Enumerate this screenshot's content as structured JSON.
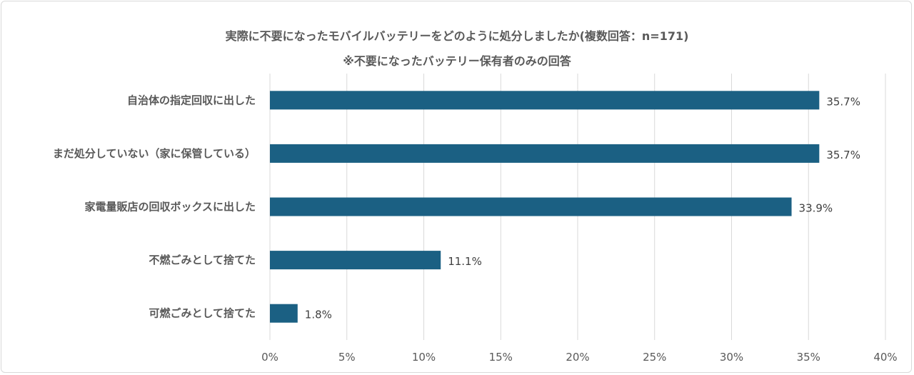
{
  "chart_data": {
    "type": "bar",
    "orientation": "horizontal",
    "title": "実際に不要になったモバイルバッテリーをどのように処分しましたか(複数回答：n=171)",
    "subtitle": "※不要になったバッテリー保有者のみの回答",
    "categories": [
      "自治体の指定回収に出した",
      "まだ処分していない（家に保管している）",
      "家電量販店の回収ボックスに出した",
      "不燃ごみとして捨てた",
      "可燃ごみとして捨てた"
    ],
    "values": [
      35.7,
      35.7,
      33.9,
      11.1,
      1.8
    ],
    "value_labels": [
      "35.7%",
      "35.7%",
      "33.9%",
      "11.1%",
      "1.8%"
    ],
    "xlim": [
      0,
      40
    ],
    "xticks": [
      "0%",
      "5%",
      "10%",
      "15%",
      "20%",
      "25%",
      "30%",
      "35%",
      "40%"
    ],
    "grid": "vertical",
    "bar_color": "#1b6083",
    "xlabel": "",
    "ylabel": ""
  }
}
